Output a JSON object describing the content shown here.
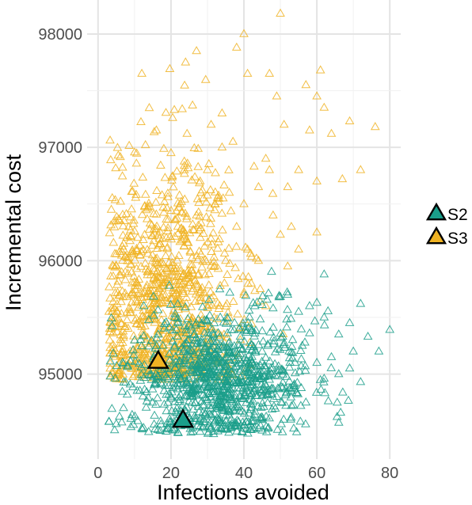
{
  "chart_data": {
    "type": "scatter",
    "xlabel": "Infections avoided",
    "ylabel": "Incremental cost",
    "xlim": [
      -3,
      83
    ],
    "ylim": [
      94250,
      98300
    ],
    "x_ticks": [
      0,
      20,
      40,
      60,
      80
    ],
    "y_ticks": [
      95000,
      96000,
      97000,
      98000
    ],
    "x_tick_labels": [
      "0",
      "20",
      "40",
      "60",
      "80"
    ],
    "y_tick_labels": [
      "95000",
      "96000",
      "97000",
      "98000"
    ],
    "grid": true,
    "legend_position": "right",
    "legend": [
      {
        "label": "S2",
        "color": "#1a9e8a"
      },
      {
        "label": "S3",
        "color": "#f0b323"
      }
    ],
    "series": [
      {
        "name": "S3",
        "color": "#f0b323",
        "marker": "open-triangle",
        "cloud": {
          "n": 1000,
          "center_x": 18,
          "center_y": 95600,
          "spread_x": 10,
          "spread_y": 650
        },
        "points": [
          {
            "x": 12,
            "y": 97650
          },
          {
            "x": 24,
            "y": 97750
          },
          {
            "x": 27,
            "y": 97850
          },
          {
            "x": 38,
            "y": 97880
          },
          {
            "x": 40,
            "y": 98000
          },
          {
            "x": 50,
            "y": 98180
          },
          {
            "x": 41,
            "y": 97650
          },
          {
            "x": 47,
            "y": 97650
          },
          {
            "x": 49,
            "y": 97450
          },
          {
            "x": 57,
            "y": 97550
          },
          {
            "x": 61,
            "y": 97680
          },
          {
            "x": 60,
            "y": 97450
          },
          {
            "x": 62,
            "y": 97350
          },
          {
            "x": 51,
            "y": 97200
          },
          {
            "x": 58,
            "y": 97150
          },
          {
            "x": 64,
            "y": 97120
          },
          {
            "x": 69,
            "y": 97230
          },
          {
            "x": 76,
            "y": 97180
          },
          {
            "x": 72,
            "y": 96800
          },
          {
            "x": 67,
            "y": 96720
          },
          {
            "x": 60,
            "y": 96700
          },
          {
            "x": 47,
            "y": 96800
          },
          {
            "x": 55,
            "y": 96800
          },
          {
            "x": 52,
            "y": 96650
          },
          {
            "x": 46,
            "y": 96900
          },
          {
            "x": 44,
            "y": 96650
          },
          {
            "x": 48,
            "y": 96400
          },
          {
            "x": 50,
            "y": 96230
          },
          {
            "x": 53,
            "y": 96300
          },
          {
            "x": 60,
            "y": 96250
          },
          {
            "x": 55,
            "y": 96100
          },
          {
            "x": 52,
            "y": 95950
          },
          {
            "x": 46,
            "y": 95600
          },
          {
            "x": 40,
            "y": 96500
          },
          {
            "x": 42,
            "y": 95800
          },
          {
            "x": 37,
            "y": 97050
          },
          {
            "x": 34,
            "y": 97300
          },
          {
            "x": 31,
            "y": 97200
          },
          {
            "x": 16,
            "y": 97150
          },
          {
            "x": 13,
            "y": 97020
          },
          {
            "x": 20,
            "y": 96950
          },
          {
            "x": 7,
            "y": 96100
          },
          {
            "x": 5,
            "y": 95950
          },
          {
            "x": 4,
            "y": 95550
          },
          {
            "x": 3,
            "y": 95550
          },
          {
            "x": 34,
            "y": 97000
          },
          {
            "x": 30,
            "y": 96800
          },
          {
            "x": 28,
            "y": 96700
          },
          {
            "x": 27,
            "y": 96400
          },
          {
            "x": 32,
            "y": 96500
          },
          {
            "x": 36,
            "y": 96600
          },
          {
            "x": 38,
            "y": 96300
          },
          {
            "x": 41,
            "y": 96100
          },
          {
            "x": 44,
            "y": 96000
          },
          {
            "x": 35,
            "y": 96000
          },
          {
            "x": 32,
            "y": 95950
          },
          {
            "x": 40,
            "y": 95700
          },
          {
            "x": 30,
            "y": 95600
          },
          {
            "x": 36,
            "y": 95500
          },
          {
            "x": 39,
            "y": 95300
          },
          {
            "x": 33,
            "y": 95250
          },
          {
            "x": 28,
            "y": 95350
          }
        ],
        "mean": {
          "x": 16.5,
          "y": 95110
        }
      },
      {
        "name": "S2",
        "color": "#1a9e8a",
        "marker": "open-triangle",
        "cloud": {
          "n": 1000,
          "center_x": 33,
          "center_y": 94960,
          "spread_x": 12,
          "spread_y": 290
        },
        "points": [
          {
            "x": 5,
            "y": 94560
          },
          {
            "x": 3,
            "y": 94580
          },
          {
            "x": 7,
            "y": 94700
          },
          {
            "x": 8,
            "y": 94820
          },
          {
            "x": 12,
            "y": 94520
          },
          {
            "x": 17,
            "y": 94500
          },
          {
            "x": 22,
            "y": 94480
          },
          {
            "x": 40,
            "y": 94550
          },
          {
            "x": 44,
            "y": 94520
          },
          {
            "x": 49,
            "y": 94800
          },
          {
            "x": 53,
            "y": 94850
          },
          {
            "x": 57,
            "y": 94750
          },
          {
            "x": 62,
            "y": 94960
          },
          {
            "x": 66,
            "y": 95000
          },
          {
            "x": 69,
            "y": 95050
          },
          {
            "x": 72,
            "y": 94930
          },
          {
            "x": 60,
            "y": 95100
          },
          {
            "x": 64,
            "y": 95150
          },
          {
            "x": 70,
            "y": 95200
          },
          {
            "x": 74,
            "y": 95330
          },
          {
            "x": 77,
            "y": 95200
          },
          {
            "x": 80,
            "y": 95390
          },
          {
            "x": 72,
            "y": 95620
          },
          {
            "x": 69,
            "y": 95450
          },
          {
            "x": 66,
            "y": 95350
          },
          {
            "x": 62,
            "y": 95500
          },
          {
            "x": 60,
            "y": 95630
          },
          {
            "x": 58,
            "y": 95600
          },
          {
            "x": 55,
            "y": 95550
          },
          {
            "x": 52,
            "y": 95700
          },
          {
            "x": 50,
            "y": 95680
          },
          {
            "x": 48,
            "y": 95580
          },
          {
            "x": 45,
            "y": 95610
          },
          {
            "x": 43,
            "y": 95600
          },
          {
            "x": 62,
            "y": 95880
          },
          {
            "x": 58,
            "y": 95360
          },
          {
            "x": 56,
            "y": 95250
          },
          {
            "x": 54,
            "y": 95100
          },
          {
            "x": 51,
            "y": 95020
          },
          {
            "x": 47,
            "y": 94950
          },
          {
            "x": 45,
            "y": 95200
          },
          {
            "x": 42,
            "y": 95400
          },
          {
            "x": 39,
            "y": 95330
          },
          {
            "x": 36,
            "y": 95120
          },
          {
            "x": 28,
            "y": 94600
          },
          {
            "x": 26,
            "y": 94530
          },
          {
            "x": 31,
            "y": 94640
          },
          {
            "x": 34,
            "y": 94700
          }
        ],
        "mean": {
          "x": 23.3,
          "y": 94590
        }
      }
    ]
  }
}
